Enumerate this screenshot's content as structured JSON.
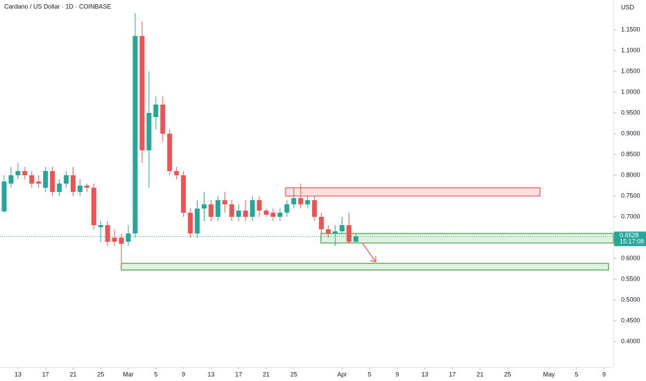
{
  "chart_data": {
    "type": "candlestick",
    "title": "Cardano / US Dollar · 1D · COINBASE",
    "currency": "USD",
    "up_color": "#26a69a",
    "down_color": "#ef5350",
    "x": [
      0,
      1,
      2,
      3,
      4,
      5,
      6,
      7,
      8,
      9,
      10,
      11,
      12,
      13,
      14,
      15,
      16,
      17,
      18,
      19,
      20,
      21,
      22,
      23,
      24,
      25,
      26,
      27,
      28,
      29,
      30,
      31,
      32,
      33,
      34,
      35,
      36,
      37,
      38,
      39,
      40,
      41,
      42,
      43,
      44,
      45,
      46,
      47,
      48,
      49,
      50,
      51
    ],
    "open": [
      0.713,
      0.78,
      0.8,
      0.81,
      0.8,
      0.785,
      0.77,
      0.81,
      0.76,
      0.78,
      0.8,
      0.76,
      0.775,
      0.77,
      0.675,
      0.68,
      0.65,
      0.65,
      0.64,
      0.66,
      1.135,
      0.86,
      0.94,
      0.97,
      0.9,
      0.81,
      0.8,
      0.71,
      0.66,
      0.72,
      0.73,
      0.7,
      0.74,
      0.73,
      0.7,
      0.715,
      0.7,
      0.74,
      0.715,
      0.71,
      0.7,
      0.71,
      0.73,
      0.745,
      0.73,
      0.74,
      0.7,
      0.67,
      0.66,
      0.665,
      0.68,
      0.64
    ],
    "high": [
      0.8,
      0.82,
      0.83,
      0.82,
      0.81,
      0.8,
      0.82,
      0.82,
      0.79,
      0.81,
      0.82,
      0.79,
      0.78,
      0.78,
      0.69,
      0.69,
      0.67,
      0.66,
      0.68,
      1.19,
      1.17,
      1.05,
      0.99,
      0.99,
      0.91,
      0.82,
      0.81,
      0.72,
      0.74,
      0.76,
      0.74,
      0.75,
      0.76,
      0.74,
      0.73,
      0.74,
      0.75,
      0.75,
      0.72,
      0.72,
      0.72,
      0.74,
      0.77,
      0.78,
      0.75,
      0.75,
      0.71,
      0.68,
      0.68,
      0.7,
      0.71,
      0.66
    ],
    "low": [
      0.71,
      0.77,
      0.79,
      0.79,
      0.77,
      0.77,
      0.76,
      0.75,
      0.75,
      0.77,
      0.75,
      0.75,
      0.76,
      0.67,
      0.64,
      0.63,
      0.63,
      0.58,
      0.63,
      0.65,
      0.83,
      0.77,
      0.91,
      0.88,
      0.8,
      0.79,
      0.7,
      0.65,
      0.65,
      0.69,
      0.69,
      0.69,
      0.71,
      0.69,
      0.69,
      0.69,
      0.69,
      0.7,
      0.7,
      0.69,
      0.69,
      0.7,
      0.72,
      0.72,
      0.72,
      0.69,
      0.66,
      0.65,
      0.63,
      0.66,
      0.635,
      0.64
    ],
    "close": [
      0.785,
      0.8,
      0.81,
      0.8,
      0.78,
      0.78,
      0.81,
      0.76,
      0.78,
      0.8,
      0.76,
      0.775,
      0.77,
      0.68,
      0.68,
      0.64,
      0.64,
      0.635,
      0.66,
      1.135,
      0.86,
      0.95,
      0.97,
      0.9,
      0.81,
      0.8,
      0.71,
      0.66,
      0.72,
      0.73,
      0.7,
      0.74,
      0.73,
      0.7,
      0.715,
      0.7,
      0.74,
      0.715,
      0.705,
      0.7,
      0.71,
      0.73,
      0.745,
      0.73,
      0.74,
      0.7,
      0.67,
      0.66,
      0.665,
      0.68,
      0.64,
      0.6528
    ],
    "countdown": "15:17:08",
    "supply_zone": {
      "low": 0.75,
      "high": 0.77
    },
    "demand_zones": [
      {
        "low": 0.637,
        "high": 0.66
      },
      {
        "low": 0.572,
        "high": 0.588
      }
    ],
    "xlim": [
      -0.603,
      88.35
    ],
    "ylim": [
      0.3383,
      1.2217
    ],
    "yticks": [
      {
        "value": 0.4,
        "label": "0.4000"
      },
      {
        "value": 0.45,
        "label": "0.4500"
      },
      {
        "value": 0.5,
        "label": "0.5000"
      },
      {
        "value": 0.55,
        "label": "0.5500"
      },
      {
        "value": 0.6,
        "label": "0.6000"
      },
      {
        "value": 0.65,
        "label": "0.6500"
      },
      {
        "value": 0.7,
        "label": "0.7000"
      },
      {
        "value": 0.75,
        "label": "0.7500"
      },
      {
        "value": 0.8,
        "label": "0.8000"
      },
      {
        "value": 0.85,
        "label": "0.8500"
      },
      {
        "value": 0.9,
        "label": "0.9000"
      },
      {
        "value": 0.95,
        "label": "0.9500"
      },
      {
        "value": 1.0,
        "label": "1.0000"
      },
      {
        "value": 1.05,
        "label": "1.0500"
      },
      {
        "value": 1.1,
        "label": "1.1000"
      },
      {
        "value": 1.15,
        "label": "1.1500"
      }
    ],
    "xticks": [
      {
        "value": 2,
        "label": "13"
      },
      {
        "value": 6,
        "label": "17"
      },
      {
        "value": 10,
        "label": "21"
      },
      {
        "value": 14,
        "label": "25"
      },
      {
        "value": 18,
        "label": "Mar"
      },
      {
        "value": 22,
        "label": "5"
      },
      {
        "value": 26,
        "label": "9"
      },
      {
        "value": 30,
        "label": "13"
      },
      {
        "value": 34,
        "label": "17"
      },
      {
        "value": 38,
        "label": "21"
      },
      {
        "value": 42,
        "label": "25"
      },
      {
        "value": 49,
        "label": "Apr"
      },
      {
        "value": 53,
        "label": "5"
      },
      {
        "value": 57,
        "label": "9"
      },
      {
        "value": 61,
        "label": "13"
      },
      {
        "value": 65,
        "label": "17"
      },
      {
        "value": 69,
        "label": "21"
      },
      {
        "value": 73,
        "label": "25"
      },
      {
        "value": 79,
        "label": "May"
      },
      {
        "value": 83,
        "label": "5"
      },
      {
        "value": 87,
        "label": "9"
      }
    ]
  }
}
